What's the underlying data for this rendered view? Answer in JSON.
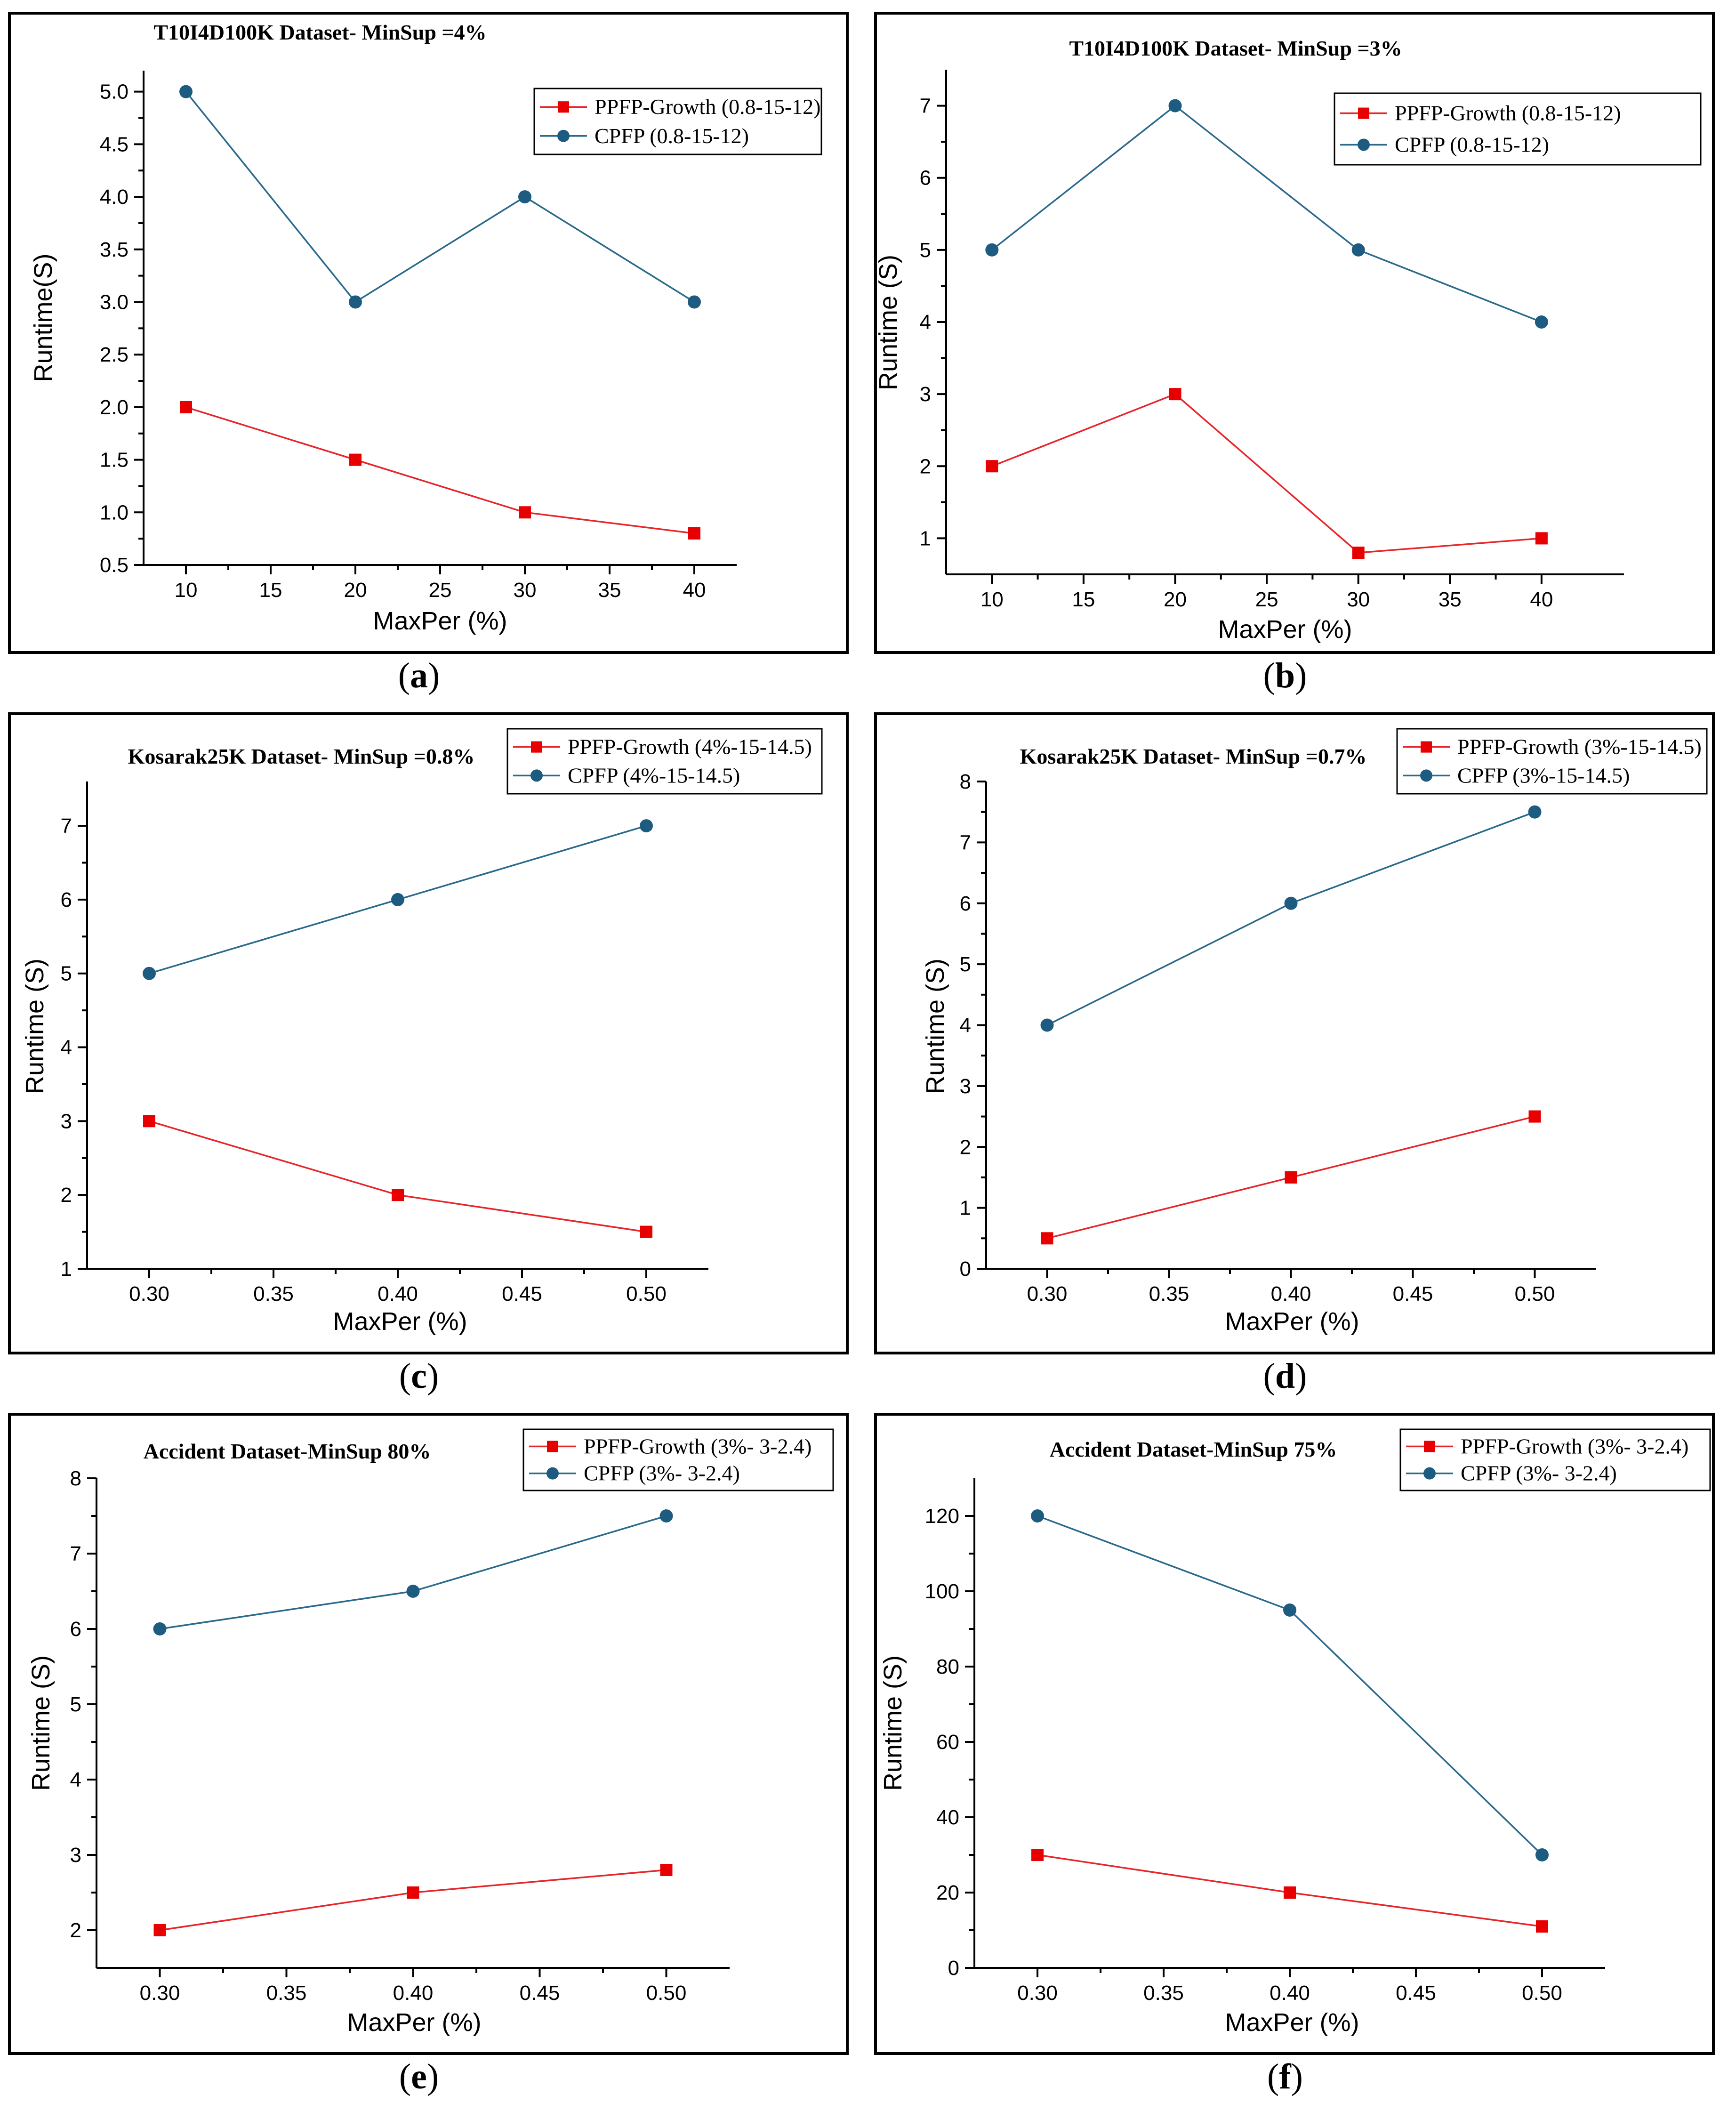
{
  "colors": {
    "ppfp": "#e8262a",
    "cpfp": "#2b6a8c",
    "ppfp_marker": "#e80000",
    "cpfp_marker": "#1d5c80"
  },
  "chart_data": [
    {
      "panel": "a",
      "type": "line",
      "title": "T10I4D100K Dataset- MinSup =4%",
      "xlabel": "MaxPer (%)",
      "ylabel": "Runtime(S)",
      "x": [
        10,
        20,
        30,
        40
      ],
      "xlim": [
        7.5,
        42.5
      ],
      "xticks": [
        "10",
        "15",
        "20",
        "25",
        "30",
        "35",
        "40"
      ],
      "ylim": [
        0.5,
        5.2
      ],
      "yticks": [
        "0.5",
        "1.0",
        "1.5",
        "2.0",
        "2.5",
        "3.0",
        "3.5",
        "4.0",
        "4.5",
        "5.0"
      ],
      "series": [
        {
          "name": "PPFP-Growth (0.8-15-12)",
          "values": [
            2.0,
            1.5,
            1.0,
            0.8
          ]
        },
        {
          "name": "CPFP (0.8-15-12)",
          "values": [
            5.0,
            3.0,
            4.0,
            3.0
          ]
        }
      ],
      "legend": "top-right",
      "caption_letter": "a"
    },
    {
      "panel": "b",
      "type": "line",
      "title": "T10I4D100K Dataset- MinSup =3%",
      "xlabel": "MaxPer (%)",
      "ylabel": "Runtime (S)",
      "x": [
        10,
        20,
        30,
        40
      ],
      "xlim": [
        7.5,
        44.5
      ],
      "xticks": [
        "10",
        "15",
        "20",
        "25",
        "30",
        "35",
        "40"
      ],
      "ylim": [
        0.5,
        7.5
      ],
      "yticks": [
        "1",
        "2",
        "3",
        "4",
        "5",
        "6",
        "7"
      ],
      "series": [
        {
          "name": "PPFP-Growth (0.8-15-12)",
          "values": [
            2.0,
            3.0,
            0.8,
            1.0
          ]
        },
        {
          "name": "CPFP (0.8-15-12)",
          "values": [
            5.0,
            7.0,
            5.0,
            4.0
          ]
        }
      ],
      "legend": "top-right",
      "caption_letter": "b"
    },
    {
      "panel": "c",
      "type": "line",
      "title": "Kosarak25K Dataset- MinSup =0.8%",
      "xlabel": "MaxPer (%)",
      "ylabel": "Runtime (S)",
      "x": [
        0.3,
        0.4,
        0.5
      ],
      "xlim": [
        0.275,
        0.525
      ],
      "xticks": [
        "0.30",
        "0.35",
        "0.40",
        "0.45",
        "0.50"
      ],
      "ylim": [
        1,
        7.6
      ],
      "yticks": [
        "1",
        "2",
        "3",
        "4",
        "5",
        "6",
        "7"
      ],
      "series": [
        {
          "name": "PPFP-Growth (4%-15-14.5)",
          "values": [
            3.0,
            2.0,
            1.5
          ]
        },
        {
          "name": "CPFP (4%-15-14.5)",
          "values": [
            5.0,
            6.0,
            7.0
          ]
        }
      ],
      "legend": "top-right",
      "caption_letter": "c"
    },
    {
      "panel": "d",
      "type": "line",
      "title": "Kosarak25K Dataset- MinSup =0.7%",
      "xlabel": "MaxPer (%)",
      "ylabel": "Runtime (S)",
      "x": [
        0.3,
        0.4,
        0.5
      ],
      "xlim": [
        0.275,
        0.525
      ],
      "xticks": [
        "0.30",
        "0.35",
        "0.40",
        "0.45",
        "0.50"
      ],
      "ylim": [
        0,
        8
      ],
      "yticks": [
        "0",
        "1",
        "2",
        "3",
        "4",
        "5",
        "6",
        "7",
        "8"
      ],
      "series": [
        {
          "name": "PPFP-Growth (3%-15-14.5)",
          "values": [
            0.5,
            1.5,
            2.5
          ]
        },
        {
          "name": "CPFP (3%-15-14.5)",
          "values": [
            4.0,
            6.0,
            7.5
          ]
        }
      ],
      "legend": "top-right",
      "caption_letter": "d"
    },
    {
      "panel": "e",
      "type": "line",
      "title": "Accident Dataset-MinSup 80%",
      "xlabel": "MaxPer (%)",
      "ylabel": "Runtime (S)",
      "x": [
        0.3,
        0.4,
        0.5
      ],
      "xlim": [
        0.275,
        0.525
      ],
      "xticks": [
        "0.30",
        "0.35",
        "0.40",
        "0.45",
        "0.50"
      ],
      "ylim": [
        1.5,
        8
      ],
      "yticks": [
        "2",
        "3",
        "4",
        "5",
        "6",
        "7",
        "8"
      ],
      "series": [
        {
          "name": "PPFP-Growth (3%- 3-2.4)",
          "values": [
            2.0,
            2.5,
            2.8
          ]
        },
        {
          "name": "CPFP (3%- 3-2.4)",
          "values": [
            6.0,
            6.5,
            7.5
          ]
        }
      ],
      "legend": "top-right",
      "caption_letter": "e"
    },
    {
      "panel": "f",
      "type": "line",
      "title": "Accident Dataset-MinSup 75%",
      "xlabel": "MaxPer (%)",
      "ylabel": "Runtime (S)",
      "x": [
        0.3,
        0.4,
        0.5
      ],
      "xlim": [
        0.275,
        0.525
      ],
      "xticks": [
        "0.30",
        "0.35",
        "0.40",
        "0.45",
        "0.50"
      ],
      "ylim": [
        0,
        130
      ],
      "yticks": [
        "0",
        "20",
        "40",
        "60",
        "80",
        "100",
        "120"
      ],
      "series": [
        {
          "name": "PPFP-Growth (3%- 3-2.4)",
          "values": [
            30,
            20,
            11
          ]
        },
        {
          "name": "CPFP (3%- 3-2.4)",
          "values": [
            120,
            95,
            30
          ]
        }
      ],
      "legend": "top-right",
      "caption_letter": "f"
    }
  ]
}
